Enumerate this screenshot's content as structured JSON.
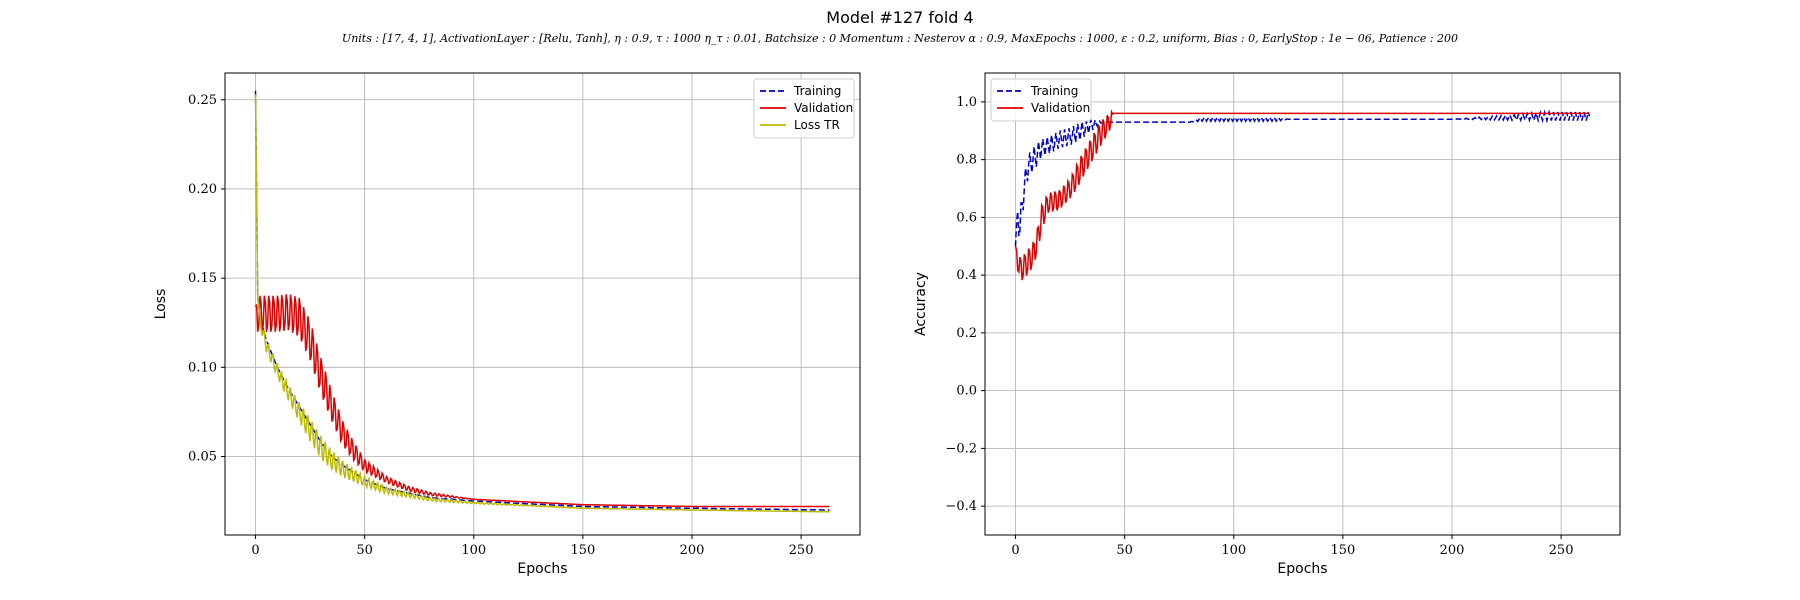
{
  "figure": {
    "title": "Model #127 fold 4",
    "subtitle": "Units : [17, 4, 1], ActivationLayer : [Relu, Tanh], η : 0.9, τ :  1000 η_τ  :  0.01, Batchsize : 0 Momentum :  Nesterov α : 0.9, MaxEpochs : 1000, ε :  0.2, uniform, Bias :  0, EarlyStop : 1e − 06, Patience : 200"
  },
  "colors": {
    "training": "#0000cc",
    "validation": "#dd0000",
    "loss_tr": "#bbbb00",
    "grid": "#b0b0b0"
  },
  "chart_data": [
    {
      "type": "line",
      "xlabel": "Epochs",
      "ylabel": "Loss",
      "xlim": [
        -14,
        277
      ],
      "ylim": [
        0.006,
        0.265
      ],
      "xticks": [
        0,
        50,
        100,
        150,
        200,
        250
      ],
      "yticks": [
        0.05,
        0.1,
        0.15,
        0.2,
        0.25
      ],
      "grid": true,
      "legend": "top-right",
      "series": [
        {
          "name": "Training",
          "style": "dashed",
          "color": "#0000cc",
          "x": [
            0,
            1,
            2,
            5,
            10,
            15,
            20,
            25,
            30,
            35,
            40,
            50,
            60,
            80,
            100,
            150,
            200,
            263
          ],
          "y": [
            0.255,
            0.14,
            0.128,
            0.115,
            0.1,
            0.088,
            0.078,
            0.068,
            0.058,
            0.05,
            0.045,
            0.037,
            0.032,
            0.027,
            0.025,
            0.022,
            0.021,
            0.02
          ]
        },
        {
          "name": "Validation",
          "style": "solid",
          "color": "#dd0000",
          "x": [
            0,
            1,
            5,
            10,
            15,
            20,
            25,
            30,
            35,
            40,
            45,
            50,
            60,
            70,
            80,
            100,
            150,
            200,
            263
          ],
          "y": [
            0.134,
            0.13,
            0.13,
            0.13,
            0.131,
            0.128,
            0.115,
            0.095,
            0.078,
            0.063,
            0.053,
            0.045,
            0.037,
            0.032,
            0.029,
            0.026,
            0.023,
            0.022,
            0.022
          ],
          "oscillation": [
            0.0,
            0.012,
            0.012,
            0.012,
            0.012,
            0.013,
            0.013,
            0.012,
            0.01,
            0.008,
            0.006,
            0.004,
            0.002,
            0.0015,
            0.001,
            0.0,
            0.0,
            0.0,
            0.0
          ]
        },
        {
          "name": "Loss TR",
          "style": "solid",
          "color": "#bbbb00",
          "x": [
            0,
            1,
            2,
            5,
            10,
            15,
            20,
            25,
            30,
            35,
            40,
            50,
            60,
            80,
            100,
            150,
            200,
            263
          ],
          "y": [
            0.253,
            0.14,
            0.126,
            0.112,
            0.098,
            0.086,
            0.075,
            0.065,
            0.055,
            0.048,
            0.043,
            0.036,
            0.031,
            0.026,
            0.024,
            0.021,
            0.02,
            0.019
          ],
          "oscillation": [
            0.0,
            0.0,
            0.004,
            0.004,
            0.004,
            0.005,
            0.006,
            0.007,
            0.007,
            0.006,
            0.005,
            0.003,
            0.002,
            0.001,
            0.0005,
            0.0,
            0.0,
            0.0
          ]
        }
      ]
    },
    {
      "type": "line",
      "xlabel": "Epochs",
      "ylabel": "Accuracy",
      "xlim": [
        -14,
        277
      ],
      "ylim": [
        -0.5,
        1.1
      ],
      "xticks": [
        0,
        50,
        100,
        150,
        200,
        250
      ],
      "yticks": [
        -0.4,
        -0.2,
        0.0,
        0.2,
        0.4,
        0.6,
        0.8,
        1.0
      ],
      "grid": true,
      "legend": "top-left",
      "series": [
        {
          "name": "Training",
          "style": "dashed",
          "color": "#0000cc",
          "x": [
            0,
            1,
            2,
            3,
            4,
            5,
            6,
            8,
            10,
            12,
            15,
            18,
            20,
            25,
            30,
            35,
            40,
            45,
            50,
            80,
            85,
            100,
            120,
            125,
            200,
            245,
            263
          ],
          "y": [
            0.5,
            0.62,
            0.55,
            0.65,
            0.7,
            0.75,
            0.78,
            0.8,
            0.82,
            0.84,
            0.85,
            0.86,
            0.87,
            0.88,
            0.9,
            0.92,
            0.93,
            0.93,
            0.93,
            0.93,
            0.94,
            0.94,
            0.94,
            0.94,
            0.94,
            0.95,
            0.95
          ],
          "oscillation": [
            0.0,
            0.05,
            0.05,
            0.05,
            0.05,
            0.04,
            0.04,
            0.04,
            0.04,
            0.03,
            0.03,
            0.03,
            0.03,
            0.03,
            0.03,
            0.02,
            0.0,
            0.0,
            0.0,
            0.0,
            0.007,
            0.007,
            0.007,
            0.0,
            0.0,
            0.015,
            0.015
          ]
        },
        {
          "name": "Validation",
          "style": "solid",
          "color": "#dd0000",
          "x": [
            0,
            1,
            2,
            4,
            6,
            8,
            10,
            12,
            15,
            20,
            25,
            28,
            30,
            33,
            36,
            39,
            42,
            44,
            45,
            100,
            200,
            263
          ],
          "y": [
            0.5,
            0.45,
            0.42,
            0.43,
            0.45,
            0.47,
            0.52,
            0.6,
            0.65,
            0.66,
            0.7,
            0.74,
            0.77,
            0.81,
            0.85,
            0.89,
            0.92,
            0.94,
            0.96,
            0.96,
            0.96,
            0.96
          ],
          "oscillation": [
            0.0,
            0.04,
            0.05,
            0.05,
            0.05,
            0.05,
            0.05,
            0.05,
            0.04,
            0.04,
            0.04,
            0.05,
            0.05,
            0.05,
            0.05,
            0.05,
            0.04,
            0.03,
            0.0,
            0.0,
            0.0,
            0.0
          ]
        }
      ]
    }
  ]
}
